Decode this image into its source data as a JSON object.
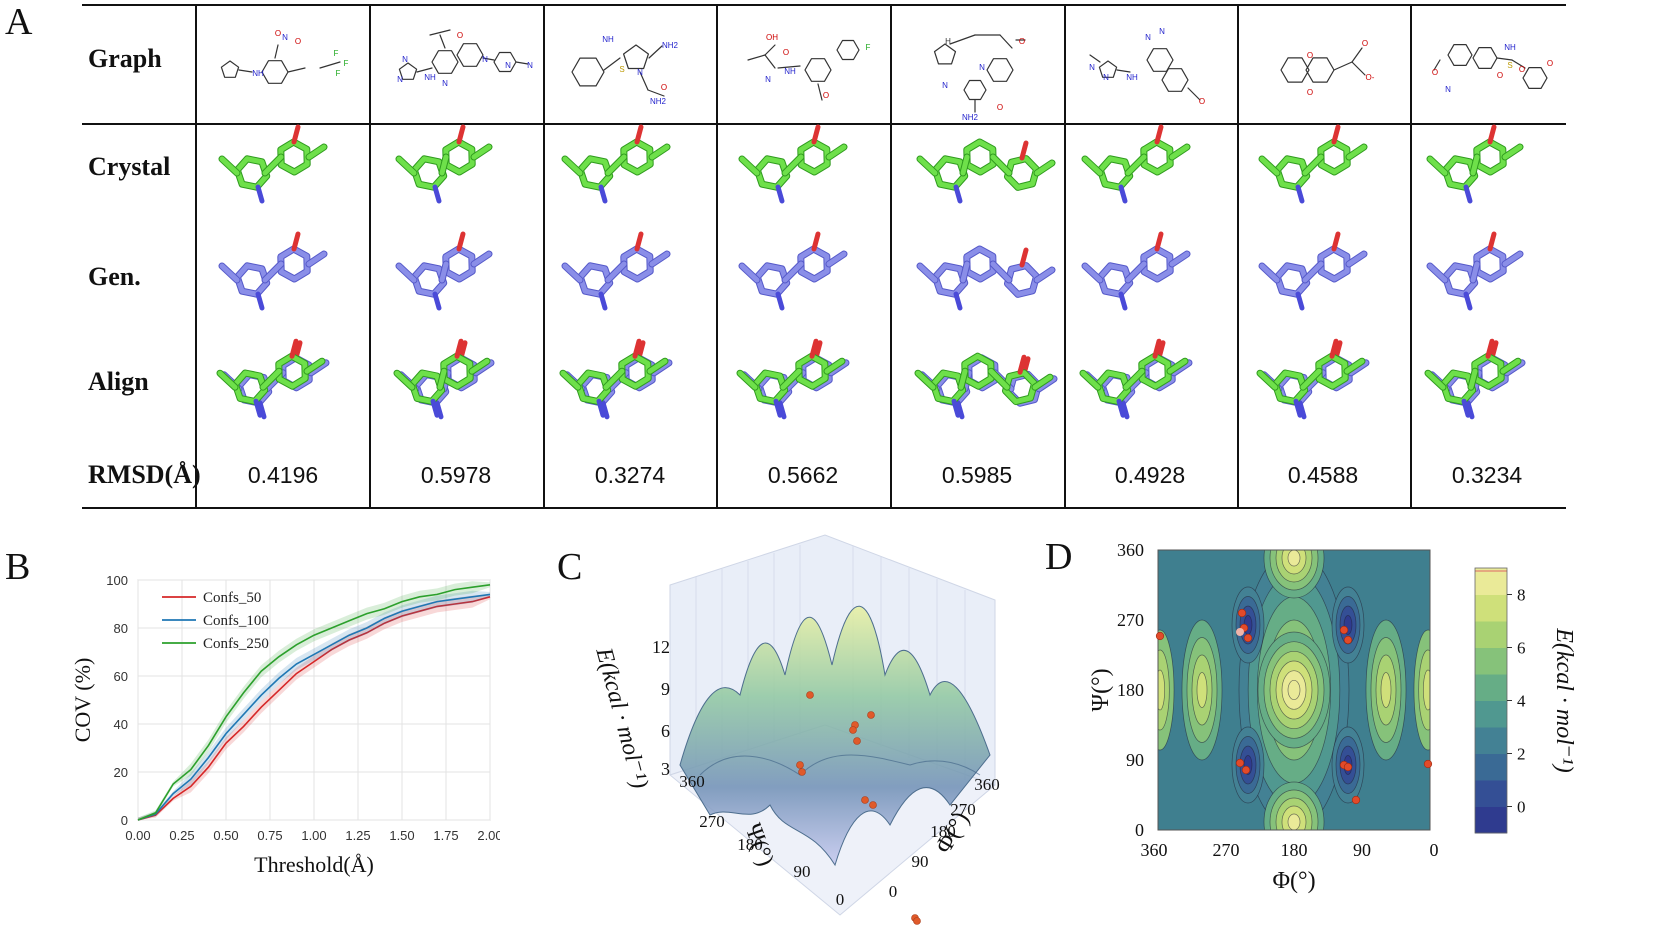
{
  "panel_labels": [
    "A",
    "B",
    "C",
    "D"
  ],
  "table": {
    "row_labels": [
      "Graph",
      "Crystal",
      "Gen.",
      "Align",
      "RMSD(Å)"
    ],
    "rmsd_values": [
      "0.4196",
      "0.5978",
      "0.3274",
      "0.5662",
      "0.5985",
      "0.4928",
      "0.4588",
      "0.3234"
    ],
    "molecule_atom_labels": [
      [
        "NH",
        "N",
        "O",
        "O",
        "F",
        "F",
        "F"
      ],
      [
        "N",
        "N",
        "NH",
        "N",
        "N",
        "O",
        "N",
        "N"
      ],
      [
        "NH",
        "N",
        "S",
        "NH2",
        "O",
        "NH2"
      ],
      [
        "OH",
        "N",
        "NH",
        "O",
        "O",
        "F"
      ],
      [
        "N",
        "N",
        "O",
        "H",
        "NH2",
        "O"
      ],
      [
        "N",
        "N",
        "NH",
        "N",
        "N",
        "O"
      ],
      [
        "O",
        "O",
        "O",
        "O-"
      ],
      [
        "NH",
        "O",
        "N",
        "S",
        "O",
        "O",
        "O"
      ]
    ]
  },
  "panel_b": {
    "chart_data": {
      "type": "line",
      "xlabel": "Threshold(Å)",
      "ylabel": "COV (%)",
      "xlim": [
        0,
        2
      ],
      "ylim": [
        0,
        100
      ],
      "x": [
        0,
        0.1,
        0.2,
        0.3,
        0.4,
        0.5,
        0.6,
        0.7,
        0.8,
        0.9,
        1.0,
        1.1,
        1.2,
        1.3,
        1.4,
        1.5,
        1.6,
        1.7,
        1.8,
        1.9,
        2.0
      ],
      "series": [
        {
          "name": "Confs_50",
          "color": "#d62728",
          "values": [
            0,
            2,
            9,
            14,
            22,
            32,
            39,
            47,
            54,
            61,
            66,
            71,
            75,
            78,
            82,
            85,
            87,
            89,
            90,
            91,
            93
          ]
        },
        {
          "name": "Confs_100",
          "color": "#1f77b4",
          "values": [
            0,
            2.5,
            11,
            17,
            26,
            36,
            44,
            52,
            59,
            65,
            69,
            73,
            77,
            80,
            84,
            87,
            89,
            91,
            92,
            93,
            94
          ]
        },
        {
          "name": "Confs_250",
          "color": "#2ca02c",
          "values": [
            0,
            3,
            15,
            21,
            31,
            43,
            53,
            62,
            68,
            73,
            77,
            80,
            83,
            86,
            88,
            91,
            93,
            94,
            96,
            97,
            98
          ]
        }
      ],
      "xticks": [
        "0.00",
        "0.25",
        "0.50",
        "0.75",
        "1.00",
        "1.25",
        "1.50",
        "1.75",
        "2.00"
      ],
      "yticks": [
        "0",
        "20",
        "40",
        "60",
        "80",
        "100"
      ]
    }
  },
  "panel_c": {
    "zlabel": "E(kcal · mol⁻¹)",
    "z_ticks": [
      "3",
      "6",
      "9",
      "12"
    ],
    "psi_label": "Ψ(°)",
    "phi_label": "Φ(°)",
    "psi_ticks": [
      "360",
      "270",
      "180",
      "90",
      "0"
    ],
    "phi_ticks": [
      "0",
      "90",
      "180",
      "270",
      "360"
    ]
  },
  "panel_d": {
    "xlabel": "Φ(°)",
    "ylabel": "Ψ(°)",
    "xticks": [
      "360",
      "270",
      "180",
      "90",
      "0"
    ],
    "yticks": [
      "0",
      "90",
      "180",
      "270",
      "360"
    ],
    "colorbar_label": "E(kcal · mol⁻¹)",
    "colorbar_ticks": [
      "0",
      "2",
      "4",
      "6",
      "8"
    ],
    "colorbar_range": [
      -1,
      9
    ]
  }
}
